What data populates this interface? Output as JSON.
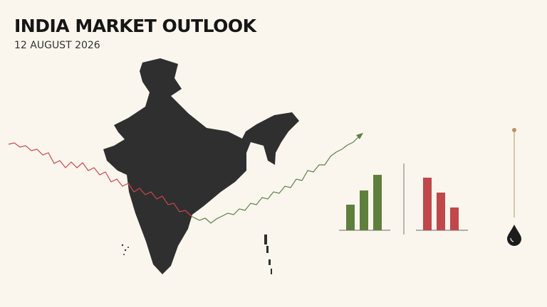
{
  "header": {
    "title": "INDIA MARKET OUTLOOK",
    "date": "12 AUGUST 2026"
  }
}
